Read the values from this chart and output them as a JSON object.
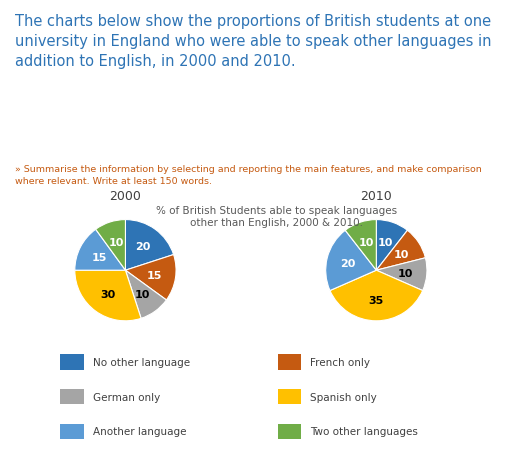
{
  "title_text": "The charts below show the proportions of British students at one\nuniversity in England who were able to speak other languages in\naddition to English, in 2000 and 2010.",
  "subtitle_text": "» Summarise the information by selecting and reporting the main features, and make comparison\nwhere relevant. Write at least 150 words.",
  "chart_title": "% of British Students able to speak languages\nother than English, 2000 & 2010.",
  "title_color": "#2E74B5",
  "subtitle_color": "#C55A11",
  "chart_title_color": "#595959",
  "year_2000_label": "2000",
  "year_2010_label": "2010",
  "categories": [
    "No other language",
    "French only",
    "German only",
    "Spanish only",
    "Another language",
    "Two other languages"
  ],
  "colors": [
    "#2E74B5",
    "#C55A11",
    "#A5A5A5",
    "#FFC000",
    "#5B9BD5",
    "#70AD47"
  ],
  "values_2000": [
    20,
    15,
    10,
    30,
    15,
    10
  ],
  "values_2010": [
    10,
    10,
    10,
    35,
    20,
    10
  ],
  "background_color": "#FFFFFF",
  "label_fontsize": 8,
  "year_fontsize": 9,
  "chart_title_fontsize": 7.5,
  "title_fontsize": 10.5,
  "subtitle_fontsize": 6.8
}
